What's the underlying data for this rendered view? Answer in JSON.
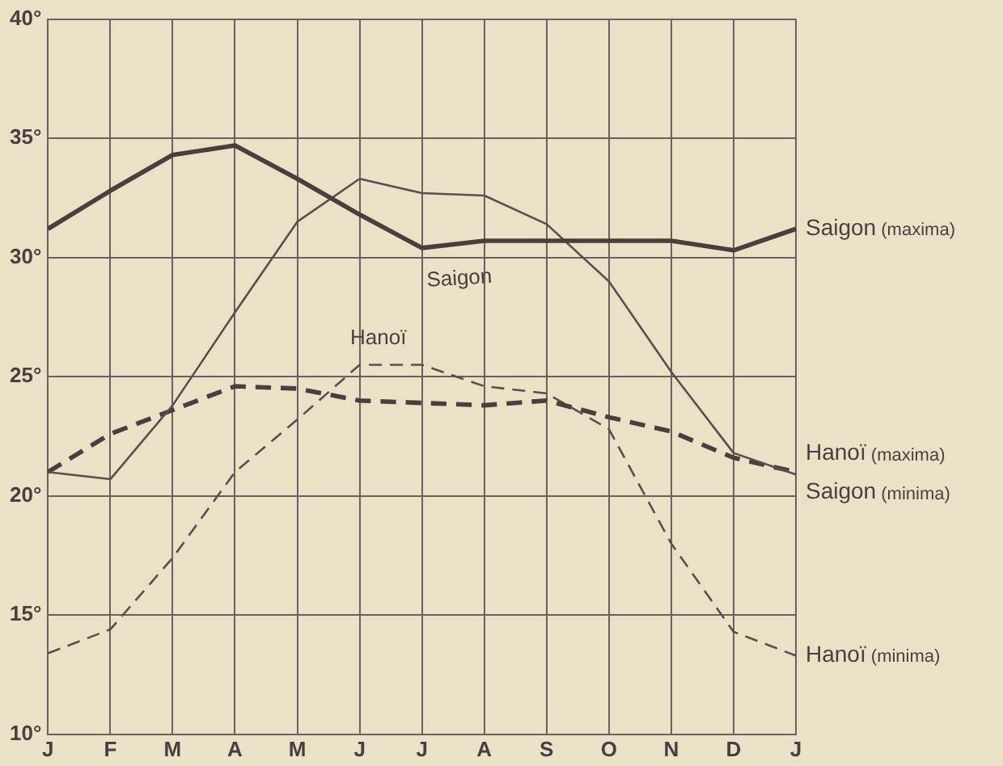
{
  "chart_data": {
    "type": "line",
    "categories": [
      "J",
      "F",
      "M",
      "A",
      "M",
      "J",
      "J",
      "A",
      "S",
      "O",
      "N",
      "D",
      "J"
    ],
    "ylim": [
      10,
      40
    ],
    "yticks": [
      {
        "value": 10,
        "label": "10°"
      },
      {
        "value": 15,
        "label": "15°"
      },
      {
        "value": 20,
        "label": "20°"
      },
      {
        "value": 25,
        "label": "25°"
      },
      {
        "value": 30,
        "label": "30°"
      },
      {
        "value": 35,
        "label": "35°"
      },
      {
        "value": 40,
        "label": "40°"
      }
    ],
    "grid": true,
    "legend": false,
    "marker": "none",
    "annotations": [
      "Saigon",
      "Hanoï"
    ],
    "series": [
      {
        "name": "Saigon (maxima)",
        "color": "#4a3f3f",
        "line_style": "solid",
        "values": [
          31.2,
          32.8,
          34.3,
          34.7,
          33.3,
          31.8,
          30.4,
          30.7,
          30.7,
          30.7,
          30.7,
          30.3,
          31.2
        ]
      },
      {
        "name": "Hanoï (maxima)",
        "color": "#5a4f4f",
        "line_style": "solid",
        "values": [
          21.0,
          20.7,
          23.8,
          27.7,
          31.5,
          33.3,
          32.7,
          32.6,
          31.4,
          29.0,
          25.2,
          21.8,
          20.9
        ]
      },
      {
        "name": "Saigon (minima)",
        "color": "#4a3f3f",
        "line_style": "dashed",
        "values": [
          21.0,
          22.6,
          23.6,
          24.6,
          24.5,
          24.0,
          23.9,
          23.8,
          24.0,
          23.3,
          22.7,
          21.6,
          21.0
        ]
      },
      {
        "name": "Hanoï (minima)",
        "color": "#5a4f4f",
        "line_style": "dashed",
        "values": [
          13.4,
          14.4,
          17.4,
          21.0,
          23.2,
          25.5,
          25.5,
          24.6,
          24.3,
          22.8,
          18.0,
          14.3,
          13.3
        ]
      }
    ]
  }
}
